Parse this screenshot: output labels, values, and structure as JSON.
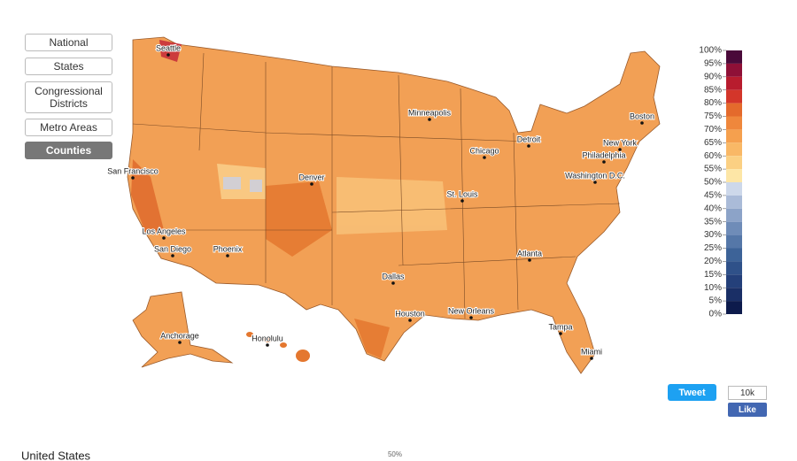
{
  "nav": {
    "buttons": [
      "National",
      "States",
      "Congressional Districts",
      "Metro Areas",
      "Counties"
    ],
    "active": 4
  },
  "map": {
    "cities": [
      "Seattle",
      "San Francisco",
      "Los Angeles",
      "San Diego",
      "Phoenix",
      "Denver",
      "Minneapolis",
      "Chicago",
      "Detroit",
      "St. Louis",
      "Dallas",
      "Houston",
      "New Orleans",
      "Atlanta",
      "Tampa",
      "Miami",
      "Washington D.C.",
      "Philadelphia",
      "New York",
      "Boston",
      "Anchorage",
      "Honolulu"
    ]
  },
  "legend": {
    "ticks": [
      {
        "value": 100,
        "label": "100%"
      },
      {
        "value": 95,
        "label": "95%"
      },
      {
        "value": 90,
        "label": "90%"
      },
      {
        "value": 85,
        "label": "85%"
      },
      {
        "value": 80,
        "label": "80%"
      },
      {
        "value": 75,
        "label": "75%"
      },
      {
        "value": 70,
        "label": "70%"
      },
      {
        "value": 65,
        "label": "65%"
      },
      {
        "value": 60,
        "label": "60%"
      },
      {
        "value": 55,
        "label": "55%"
      },
      {
        "value": 50,
        "label": "50%"
      },
      {
        "value": 45,
        "label": "45%"
      },
      {
        "value": 40,
        "label": "40%"
      },
      {
        "value": 35,
        "label": "35%"
      },
      {
        "value": 30,
        "label": "30%"
      },
      {
        "value": 25,
        "label": "25%"
      },
      {
        "value": 20,
        "label": "20%"
      },
      {
        "value": 15,
        "label": "15%"
      },
      {
        "value": 10,
        "label": "10%"
      },
      {
        "value": 5,
        "label": "5%"
      },
      {
        "value": 0,
        "label": "0%"
      }
    ],
    "colors": [
      "#4a0a3a",
      "#8f1037",
      "#b81c2e",
      "#d3362a",
      "#e46a2c",
      "#ef873c",
      "#f5a04e",
      "#f9b866",
      "#fbd083",
      "#fde6a6",
      "#cdd8ea",
      "#aabbd8",
      "#8ca3c8",
      "#6f8cb8",
      "#5577a8",
      "#3d6398",
      "#2f5189",
      "#24407a",
      "#1a2f66",
      "#0d1b4c"
    ]
  },
  "social": {
    "tweet": "Tweet",
    "count": "10k",
    "like": "Like"
  },
  "footer": {
    "region": "United States",
    "mid_label": "50%"
  }
}
